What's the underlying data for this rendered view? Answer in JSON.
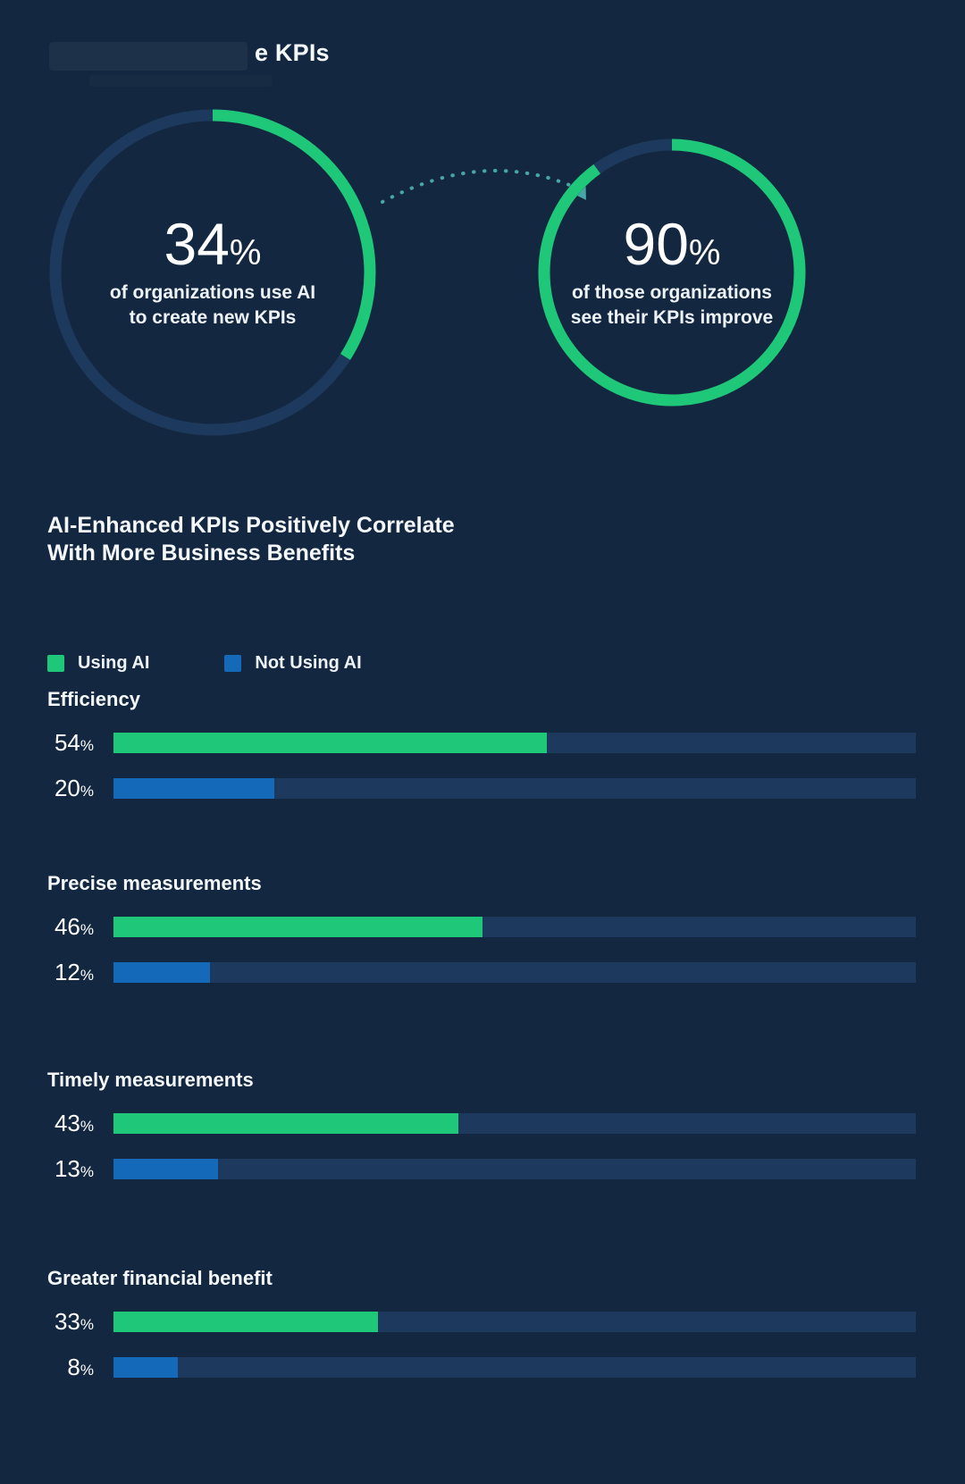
{
  "theme": {
    "background": "#132840",
    "track": "#1d3a5e",
    "green": "#1fc878",
    "blue": "#1569b9",
    "teal": "#48a6a6",
    "text": "#f2f6f9"
  },
  "header": {
    "title_visible": "e KPIs"
  },
  "donuts": [
    {
      "value": "34",
      "unit": "%",
      "pct": 34,
      "caption": "of organizations use AI\nto create new KPIs"
    },
    {
      "value": "90",
      "unit": "%",
      "pct": 90,
      "caption": "of those organizations\nsee their KPIs improve"
    }
  ],
  "section": {
    "title_line1": "AI-Enhanced KPIs Positively Correlate",
    "title_line2": "With More Business Benefits"
  },
  "legend": [
    {
      "label": "Using AI",
      "swatch": "green"
    },
    {
      "label": "Not Using AI",
      "swatch": "blue"
    }
  ],
  "chart_data": [
    {
      "type": "pie",
      "subtype": "donut",
      "title": "AI KPI adoption",
      "values": [
        {
          "label": "of organizations use AI to create new KPIs",
          "value": 34
        }
      ],
      "unit": "%",
      "start": "top",
      "direction": "clockwise"
    },
    {
      "type": "pie",
      "subtype": "donut",
      "title": "KPI improvement among AI users",
      "values": [
        {
          "label": "of those organizations see their KPIs improve",
          "value": 90
        }
      ],
      "unit": "%",
      "start": "top",
      "direction": "clockwise"
    },
    {
      "type": "bar",
      "orientation": "horizontal",
      "title": "AI-Enhanced KPIs Positively Correlate With More Business Benefits",
      "categories": [
        "Efficiency",
        "Precise measurements",
        "Timely measurements",
        "Greater financial benefit"
      ],
      "series": [
        {
          "name": "Using AI",
          "color_key": "green",
          "values": [
            54,
            46,
            43,
            33
          ]
        },
        {
          "name": "Not Using AI",
          "color_key": "blue",
          "values": [
            20,
            12,
            13,
            8
          ]
        }
      ],
      "unit": "%",
      "xlim": [
        0,
        100
      ],
      "grid": false,
      "legend_position": "top-left"
    }
  ]
}
